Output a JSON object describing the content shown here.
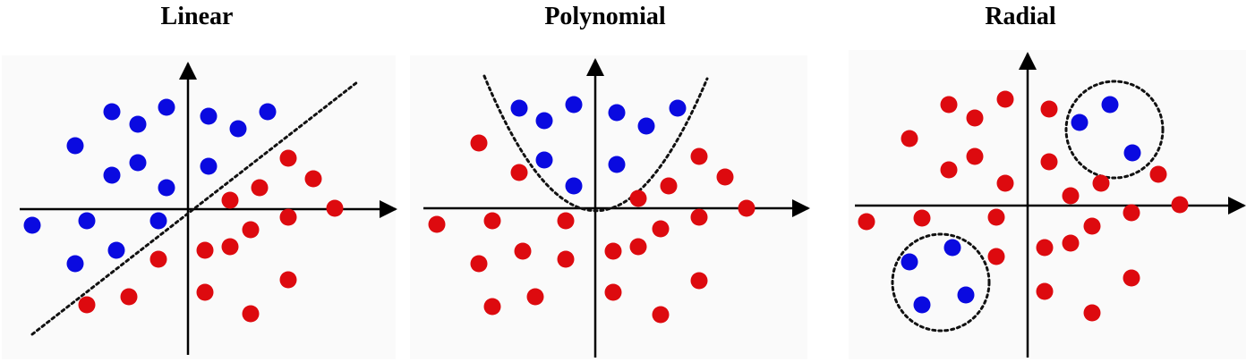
{
  "colors": {
    "class_a": "#0a0ae0",
    "class_b": "#dd0a0f",
    "axes": "#000000",
    "panel_background": "#fafafa",
    "boundary": "#111111"
  },
  "panels": [
    {
      "title": "Linear",
      "boundary": "line",
      "class_a": [
        [
          36,
          252
        ],
        [
          84,
          163
        ],
        [
          84,
          295
        ],
        [
          97,
          247
        ],
        [
          125,
          125
        ],
        [
          125,
          196
        ],
        [
          130,
          280
        ],
        [
          154,
          139
        ],
        [
          154,
          182
        ],
        [
          177,
          247
        ],
        [
          186,
          210
        ],
        [
          186,
          120
        ],
        [
          233,
          130
        ],
        [
          233,
          186
        ],
        [
          266,
          144
        ],
        [
          299,
          125
        ]
      ],
      "class_b": [
        [
          97,
          341
        ],
        [
          144,
          332
        ],
        [
          177,
          290
        ],
        [
          229,
          280
        ],
        [
          229,
          327
        ],
        [
          257,
          224
        ],
        [
          257,
          276
        ],
        [
          280,
          257
        ],
        [
          280,
          351
        ],
        [
          290,
          210
        ],
        [
          322,
          177
        ],
        [
          322,
          243
        ],
        [
          322,
          313
        ],
        [
          350,
          200
        ],
        [
          374,
          233
        ]
      ]
    },
    {
      "title": "Polynomial",
      "boundary": "parabola",
      "class_a": [
        [
          580,
          121
        ],
        [
          608,
          135
        ],
        [
          608,
          179
        ],
        [
          641,
          117
        ],
        [
          641,
          208
        ],
        [
          689,
          126
        ],
        [
          689,
          184
        ],
        [
          722,
          141
        ],
        [
          757,
          121
        ]
      ],
      "class_b": [
        [
          488,
          251
        ],
        [
          535,
          160
        ],
        [
          535,
          295
        ],
        [
          550,
          247
        ],
        [
          550,
          343
        ],
        [
          580,
          193
        ],
        [
          584,
          281
        ],
        [
          598,
          332
        ],
        [
          632,
          247
        ],
        [
          632,
          290
        ],
        [
          685,
          281
        ],
        [
          685,
          327
        ],
        [
          713,
          222
        ],
        [
          713,
          276
        ],
        [
          738,
          256
        ],
        [
          738,
          352
        ],
        [
          747,
          208
        ],
        [
          781,
          175
        ],
        [
          781,
          243
        ],
        [
          781,
          314
        ],
        [
          810,
          198
        ],
        [
          834,
          233
        ]
      ]
    },
    {
      "title": "Radial",
      "boundary": "circles",
      "class_a": [
        [
          1016,
          293
        ],
        [
          1030,
          341
        ],
        [
          1064,
          277
        ],
        [
          1079,
          330
        ],
        [
          1206,
          137
        ],
        [
          1240,
          117
        ],
        [
          1265,
          171
        ]
      ],
      "class_b": [
        [
          968,
          248
        ],
        [
          1016,
          155
        ],
        [
          1030,
          244
        ],
        [
          1060,
          117
        ],
        [
          1060,
          190
        ],
        [
          1089,
          132
        ],
        [
          1089,
          175
        ],
        [
          1113,
          243
        ],
        [
          1113,
          287
        ],
        [
          1123,
          111
        ],
        [
          1123,
          205
        ],
        [
          1167,
          277
        ],
        [
          1167,
          326
        ],
        [
          1172,
          122
        ],
        [
          1172,
          181
        ],
        [
          1196,
          219
        ],
        [
          1196,
          272
        ],
        [
          1220,
          253
        ],
        [
          1220,
          350
        ],
        [
          1230,
          205
        ],
        [
          1264,
          238
        ],
        [
          1264,
          311
        ],
        [
          1294,
          195
        ],
        [
          1318,
          229
        ]
      ]
    }
  ]
}
